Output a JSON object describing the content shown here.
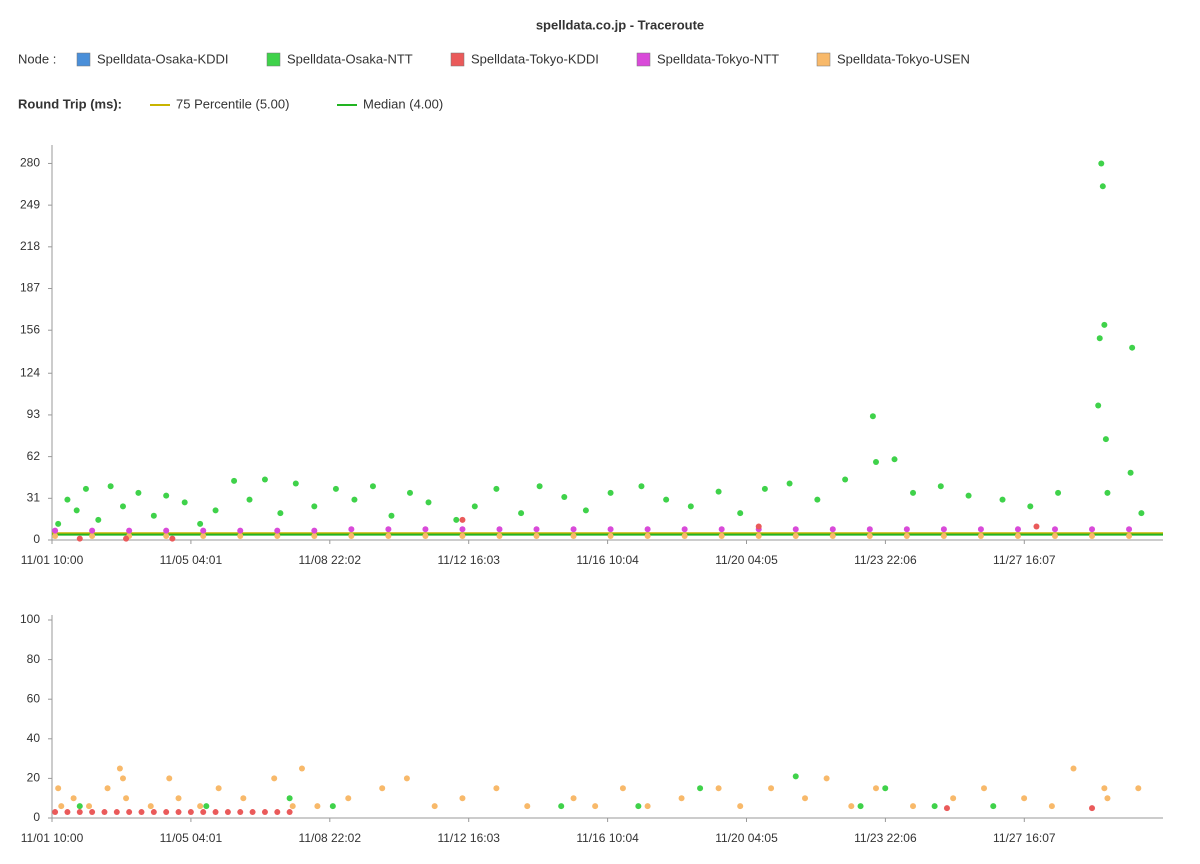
{
  "title": "spelldata.co.jp - Traceroute",
  "legend": {
    "node_label": "Node :",
    "round_trip_label": "Round Trip (ms):"
  },
  "chart_data": [
    {
      "type": "scatter",
      "xlim": [
        "11/01 10:00",
        "12/01 10:00"
      ],
      "xticks": [
        "11/01 10:00",
        "11/05 04:01",
        "11/08 22:02",
        "11/12 16:03",
        "11/16 10:04",
        "11/20 04:05",
        "11/23 22:06",
        "11/27 16:07"
      ],
      "ylim": [
        0,
        290
      ],
      "yticks": [
        0,
        31,
        62,
        93,
        124,
        156,
        187,
        218,
        249,
        280
      ],
      "reference_lines": [
        {
          "label": "75 Percentile (5.00)",
          "value": 5,
          "color": "#c8b400"
        },
        {
          "label": "Median (4.00)",
          "value": 4,
          "color": "#22b422"
        }
      ],
      "series": [
        {
          "name": "Spelldata-Osaka-KDDI",
          "color": "#4a8fd9",
          "x": [],
          "values": []
        },
        {
          "name": "Spelldata-Osaka-NTT",
          "color": "#3fd24a",
          "x": [
            "11/01 14:00",
            "11/01 20:00",
            "11/02 02:00",
            "11/02 08:00",
            "11/02 16:00",
            "11/03 00:00",
            "11/03 08:00",
            "11/03 18:00",
            "11/04 04:00",
            "11/04 12:00",
            "11/05 00:00",
            "11/05 10:00",
            "11/05 20:00",
            "11/06 08:00",
            "11/06 18:00",
            "11/07 04:00",
            "11/07 14:00",
            "11/08 00:00",
            "11/08 12:00",
            "11/09 02:00",
            "11/09 14:00",
            "11/10 02:00",
            "11/10 14:00",
            "11/11 02:00",
            "11/11 14:00",
            "11/12 08:00",
            "11/12 20:00",
            "11/13 10:00",
            "11/14 02:00",
            "11/14 14:00",
            "11/15 06:00",
            "11/15 20:00",
            "11/16 12:00",
            "11/17 08:00",
            "11/18 00:00",
            "11/18 16:00",
            "11/19 10:00",
            "11/20 00:00",
            "11/20 16:00",
            "11/21 08:00",
            "11/22 02:00",
            "11/22 20:00",
            "11/23 14:00",
            "11/23 16:00",
            "11/24 04:00",
            "11/24 16:00",
            "11/25 10:00",
            "11/26 04:00",
            "11/27 02:00",
            "11/27 20:00",
            "11/28 14:00",
            "11/29 18:00",
            "11/29 19:00",
            "11/29 20:00",
            "11/29 17:00",
            "11/29 16:00",
            "11/29 21:00",
            "11/29 22:00",
            "11/30 14:00",
            "11/30 13:00",
            "11/30 20:00"
          ],
          "values": [
            12,
            30,
            22,
            38,
            15,
            40,
            25,
            35,
            18,
            33,
            28,
            12,
            22,
            44,
            30,
            45,
            20,
            42,
            25,
            38,
            30,
            40,
            18,
            35,
            28,
            15,
            25,
            38,
            20,
            40,
            32,
            22,
            35,
            40,
            30,
            25,
            36,
            20,
            38,
            42,
            30,
            45,
            92,
            58,
            60,
            35,
            40,
            33,
            30,
            25,
            35,
            280,
            263,
            160,
            150,
            100,
            75,
            35,
            143,
            50,
            20
          ]
        },
        {
          "name": "Spelldata-Tokyo-KDDI",
          "color": "#ea5a5a",
          "x": [
            "11/02 04:00",
            "11/03 10:00",
            "11/04 16:00",
            "11/12 12:00",
            "11/20 12:00",
            "11/28 00:00"
          ],
          "values": [
            1,
            1,
            1,
            15,
            10,
            10
          ]
        },
        {
          "name": "Spelldata-Tokyo-NTT",
          "color": "#d94ad9",
          "x": [
            "11/01 12:00",
            "11/02 12:00",
            "11/03 12:00",
            "11/04 12:00",
            "11/05 12:00",
            "11/06 12:00",
            "11/07 12:00",
            "11/08 12:00",
            "11/09 12:00",
            "11/10 12:00",
            "11/11 12:00",
            "11/12 12:00",
            "11/13 12:00",
            "11/14 12:00",
            "11/15 12:00",
            "11/16 12:00",
            "11/17 12:00",
            "11/18 12:00",
            "11/19 12:00",
            "11/20 12:00",
            "11/21 12:00",
            "11/22 12:00",
            "11/23 12:00",
            "11/24 12:00",
            "11/25 12:00",
            "11/26 12:00",
            "11/27 12:00",
            "11/28 12:00",
            "11/29 12:00",
            "11/30 12:00"
          ],
          "values": [
            7,
            7,
            7,
            7,
            7,
            7,
            7,
            7,
            8,
            8,
            8,
            8,
            8,
            8,
            8,
            8,
            8,
            8,
            8,
            8,
            8,
            8,
            8,
            8,
            8,
            8,
            8,
            8,
            8,
            8
          ]
        },
        {
          "name": "Spelldata-Tokyo-USEN",
          "color": "#f8b96a",
          "x": [
            "11/01 12:00",
            "11/02 12:00",
            "11/03 12:00",
            "11/04 12:00",
            "11/05 12:00",
            "11/06 12:00",
            "11/07 12:00",
            "11/08 12:00",
            "11/09 12:00",
            "11/10 12:00",
            "11/11 12:00",
            "11/12 12:00",
            "11/13 12:00",
            "11/14 12:00",
            "11/15 12:00",
            "11/16 12:00",
            "11/17 12:00",
            "11/18 12:00",
            "11/19 12:00",
            "11/20 12:00",
            "11/21 12:00",
            "11/22 12:00",
            "11/23 12:00",
            "11/24 12:00",
            "11/25 12:00",
            "11/26 12:00",
            "11/27 12:00",
            "11/28 12:00",
            "11/29 12:00",
            "11/30 12:00"
          ],
          "values": [
            3,
            3,
            3,
            3,
            3,
            3,
            3,
            3,
            3,
            3,
            3,
            3,
            3,
            3,
            3,
            3,
            3,
            3,
            3,
            3,
            3,
            3,
            3,
            3,
            3,
            3,
            3,
            3,
            3,
            3
          ]
        }
      ]
    },
    {
      "type": "scatter",
      "xlim": [
        "11/01 10:00",
        "12/01 10:00"
      ],
      "xticks": [
        "11/01 10:00",
        "11/05 04:01",
        "11/08 22:02",
        "11/12 16:03",
        "11/16 10:04",
        "11/20 04:05",
        "11/23 22:06",
        "11/27 16:07"
      ],
      "ylim": [
        0,
        100
      ],
      "yticks": [
        0,
        20,
        40,
        60,
        80,
        100
      ],
      "series": [
        {
          "x": [],
          "values": []
        },
        {
          "x": [
            "11/02 04:00",
            "11/05 14:00",
            "11/07 20:00",
            "11/09 00:00",
            "11/15 04:00",
            "11/17 06:00",
            "11/18 22:00",
            "11/21 12:00",
            "11/23 06:00",
            "11/23 22:00",
            "11/25 06:00",
            "11/26 20:00"
          ],
          "values": [
            6,
            6,
            10,
            6,
            6,
            6,
            15,
            21,
            6,
            15,
            6,
            6
          ]
        },
        {
          "x": [
            "11/01 12:00",
            "11/01 20:00",
            "11/02 04:00",
            "11/02 12:00",
            "11/02 20:00",
            "11/03 04:00",
            "11/03 12:00",
            "11/03 20:00",
            "11/04 04:00",
            "11/04 12:00",
            "11/04 20:00",
            "11/05 04:00",
            "11/05 12:00",
            "11/05 20:00",
            "11/06 04:00",
            "11/06 12:00",
            "11/06 20:00",
            "11/07 04:00",
            "11/07 12:00",
            "11/07 20:00",
            "11/25 14:00",
            "11/29 12:00"
          ],
          "values": [
            3,
            3,
            3,
            3,
            3,
            3,
            3,
            3,
            3,
            3,
            3,
            3,
            3,
            3,
            3,
            3,
            3,
            3,
            3,
            3,
            5,
            5
          ]
        },
        {
          "x": [],
          "values": []
        },
        {
          "x": [
            "11/01 14:00",
            "11/01 16:00",
            "11/02 00:00",
            "11/02 10:00",
            "11/02 22:00",
            "11/03 06:00",
            "11/03 08:00",
            "11/03 10:00",
            "11/04 02:00",
            "11/04 14:00",
            "11/04 20:00",
            "11/05 10:00",
            "11/05 22:00",
            "11/06 14:00",
            "11/07 10:00",
            "11/07 22:00",
            "11/08 04:00",
            "11/08 14:00",
            "11/09 10:00",
            "11/10 08:00",
            "11/11 00:00",
            "11/11 18:00",
            "11/12 12:00",
            "11/13 10:00",
            "11/14 06:00",
            "11/15 12:00",
            "11/16 02:00",
            "11/16 20:00",
            "11/17 12:00",
            "11/18 10:00",
            "11/19 10:00",
            "11/20 00:00",
            "11/20 20:00",
            "11/21 18:00",
            "11/22 08:00",
            "11/23 00:00",
            "11/23 16:00",
            "11/24 16:00",
            "11/25 18:00",
            "11/26 14:00",
            "11/27 16:00",
            "11/28 10:00",
            "11/29 00:00",
            "11/29 20:00",
            "11/29 22:00",
            "11/30 18:00"
          ],
          "values": [
            15,
            6,
            10,
            6,
            15,
            25,
            20,
            10,
            6,
            20,
            10,
            6,
            15,
            10,
            20,
            6,
            25,
            6,
            10,
            15,
            20,
            6,
            10,
            15,
            6,
            10,
            6,
            15,
            6,
            10,
            15,
            6,
            15,
            10,
            20,
            6,
            15,
            6,
            10,
            15,
            10,
            6,
            25,
            15,
            10,
            15
          ]
        }
      ]
    }
  ]
}
